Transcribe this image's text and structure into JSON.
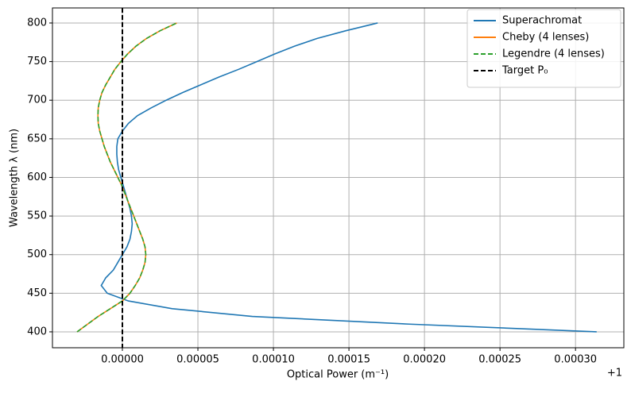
{
  "chart_data": {
    "type": "line",
    "xlabel": "Optical Power (m⁻¹)",
    "ylabel": "Wavelength λ (nm)",
    "x_offset_label": "+1",
    "y": [
      400,
      410,
      420,
      430,
      440,
      450,
      460,
      470,
      480,
      490,
      500,
      510,
      520,
      530,
      540,
      550,
      560,
      570,
      580,
      590,
      600,
      610,
      620,
      630,
      640,
      650,
      660,
      670,
      680,
      690,
      700,
      710,
      720,
      730,
      740,
      750,
      760,
      770,
      780,
      790,
      800
    ],
    "series": [
      {
        "name": "Superachromat",
        "color": "#1f77b4",
        "dash": "none",
        "values": [
          0.000314,
          0.00019,
          8.6e-05,
          3.3e-05,
          4e-06,
          -1e-05,
          -1.4e-05,
          -1.1e-05,
          -6e-06,
          -3e-06,
          0,
          3e-06,
          5e-06,
          6e-06,
          6.5e-06,
          6e-06,
          5e-06,
          3.5e-06,
          2e-06,
          5e-07,
          -1e-06,
          -2.5e-06,
          -3.3e-06,
          -3.7e-06,
          -3.7e-06,
          -3e-06,
          0,
          4e-06,
          1e-05,
          1.9e-05,
          2.9e-05,
          4e-05,
          5.2e-05,
          6.4e-05,
          7.7e-05,
          8.9e-05,
          0.000101,
          0.000114,
          0.000129,
          0.000148,
          0.000169
        ]
      },
      {
        "name": "Cheby (4 lenses)",
        "color": "#ff7f0e",
        "dash": "none",
        "values": [
          -3e-05,
          -2.3e-05,
          -1.6e-05,
          -8e-06,
          0,
          5e-06,
          8.5e-06,
          1.15e-05,
          1.35e-05,
          1.5e-05,
          1.55e-05,
          1.5e-05,
          1.35e-05,
          1.15e-05,
          9.5e-06,
          7.5e-06,
          5.5e-06,
          3.5e-06,
          1.5e-06,
          -5e-07,
          -3e-06,
          -5.5e-06,
          -8e-06,
          -1e-05,
          -1.2e-05,
          -1.35e-05,
          -1.5e-05,
          -1.6e-05,
          -1.62e-05,
          -1.6e-05,
          -1.5e-05,
          -1.35e-05,
          -1.1e-05,
          -8e-06,
          -5e-06,
          -1e-06,
          3.5e-06,
          9e-06,
          1.6e-05,
          2.5e-05,
          3.6e-05
        ]
      },
      {
        "name": "Legendre (4 lenses)",
        "color": "#2ca02c",
        "dash": "6 3",
        "values": [
          -3e-05,
          -2.3e-05,
          -1.6e-05,
          -8e-06,
          0,
          5e-06,
          8.5e-06,
          1.15e-05,
          1.35e-05,
          1.5e-05,
          1.55e-05,
          1.5e-05,
          1.35e-05,
          1.15e-05,
          9.5e-06,
          7.5e-06,
          5.5e-06,
          3.5e-06,
          1.5e-06,
          -5e-07,
          -3e-06,
          -5.5e-06,
          -8e-06,
          -1e-05,
          -1.2e-05,
          -1.35e-05,
          -1.5e-05,
          -1.6e-05,
          -1.62e-05,
          -1.6e-05,
          -1.5e-05,
          -1.35e-05,
          -1.1e-05,
          -8e-06,
          -5e-06,
          -1e-06,
          3.5e-06,
          9e-06,
          1.6e-05,
          2.5e-05,
          3.6e-05
        ]
      }
    ],
    "vline": {
      "name": "Target P₀",
      "value": 0,
      "color": "#000000"
    },
    "xlim": [
      -4.63e-05,
      0.000332
    ],
    "ylim": [
      379.4,
      819.5
    ],
    "xticks": [
      {
        "value": 0,
        "label": "0.00000"
      },
      {
        "value": 5e-05,
        "label": "0.00005"
      },
      {
        "value": 0.0001,
        "label": "0.00010"
      },
      {
        "value": 0.00015,
        "label": "0.00015"
      },
      {
        "value": 0.0002,
        "label": "0.00020"
      },
      {
        "value": 0.00025,
        "label": "0.00025"
      },
      {
        "value": 0.0003,
        "label": "0.00030"
      }
    ],
    "yticks": [
      400,
      450,
      500,
      550,
      600,
      650,
      700,
      750,
      800
    ],
    "grid": true,
    "legend": "upper right"
  }
}
